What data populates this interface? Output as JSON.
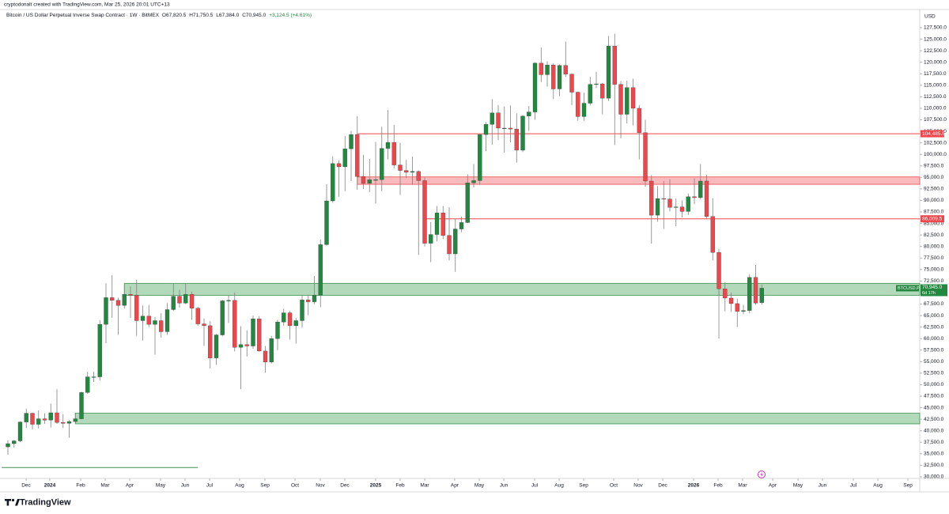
{
  "header": {
    "credit": "cryptodonalt created with TradingView.com, Mar 25, 2026 20:01 UTC+13",
    "footer_logo": "TradingView"
  },
  "chart_data": {
    "type": "candlestick",
    "title": "Bitcoin / US Dollar Perpetual Inverse Swap Contract · 1W · BitMEX",
    "legend_text": [
      "O67,820.5",
      "H71,750.5",
      "L67,384.0",
      "C70,945.0",
      "+3,124.5 (+4.61%)"
    ],
    "y_axis_unit": "USD",
    "up_color": "#22883f",
    "down_color": "#f0464b",
    "wick_color": "#808080",
    "open": [
      36500,
      37200,
      37800,
      41900,
      43800,
      41400,
      42600,
      42300,
      43900,
      41800,
      41600,
      42000,
      42600,
      48300,
      51700,
      51700,
      63100,
      68900,
      68300,
      67200,
      69600,
      69400,
      63900,
      64900,
      63100,
      63900,
      61500,
      66300,
      69200,
      67700,
      69600,
      66600,
      63200,
      62800,
      55800,
      60800,
      68200,
      68300,
      58100,
      58700,
      58400,
      64300,
      57300,
      54900,
      60000,
      63600,
      65600,
      62800,
      63900,
      68400,
      68000,
      69400,
      80400,
      89900,
      98000,
      97300,
      101200,
      104300,
      95200,
      93700,
      94500,
      94500,
      101300,
      102600,
      97700,
      96500,
      96100,
      96300,
      94300,
      80700,
      82600,
      87300,
      82400,
      78400,
      83800,
      85200,
      93800,
      94300,
      104300,
      106500,
      109000,
      105700,
      105700,
      105500,
      100900,
      108300,
      109200,
      119800,
      117300,
      119400,
      114200,
      119300,
      117400,
      113500,
      108200,
      111100,
      115200,
      115300,
      112200,
      123500,
      115200,
      108700,
      114500,
      110000,
      104700,
      94200,
      86800,
      90400,
      90300,
      88500,
      88600,
      87600,
      90800,
      90600,
      94200,
      86500,
      78700,
      70800,
      68800,
      67600,
      65900,
      66100,
      73300,
      67820.5
    ],
    "high": [
      37900,
      38000,
      42000,
      44800,
      43900,
      44400,
      43800,
      45900,
      49000,
      43600,
      42300,
      43900,
      48500,
      52800,
      52800,
      64000,
      72000,
      73800,
      68900,
      71700,
      71300,
      72800,
      67200,
      67300,
      64700,
      65500,
      67700,
      71900,
      70600,
      71900,
      70200,
      66900,
      64400,
      63800,
      61000,
      68400,
      69300,
      70000,
      62700,
      61800,
      65000,
      64900,
      58400,
      60600,
      64100,
      66500,
      66000,
      64500,
      69500,
      69500,
      73600,
      81500,
      93500,
      99600,
      98700,
      104000,
      105100,
      108300,
      99900,
      99000,
      102700,
      106000,
      109600,
      106400,
      102500,
      98800,
      99500,
      96500,
      95000,
      85300,
      88800,
      88800,
      88500,
      86000,
      86500,
      95700,
      97900,
      104500,
      107000,
      112000,
      110700,
      110400,
      110600,
      108900,
      108500,
      110500,
      120000,
      123200,
      120200,
      119800,
      119500,
      124500,
      117600,
      113600,
      113400,
      116800,
      117900,
      115500,
      125700,
      126200,
      115900,
      116000,
      116400,
      110700,
      107500,
      95500,
      93100,
      94200,
      94600,
      90400,
      90000,
      91500,
      94800,
      97900,
      95500,
      90500,
      79500,
      72200,
      70000,
      68700,
      67300,
      74000,
      76000,
      71750.5
    ],
    "low": [
      34800,
      36300,
      37500,
      40600,
      40300,
      40500,
      41500,
      40700,
      41500,
      40600,
      38500,
      41800,
      42500,
      48000,
      50600,
      50900,
      59000,
      64500,
      60800,
      66500,
      64500,
      60600,
      59600,
      62500,
      56500,
      60200,
      60800,
      66000,
      66700,
      67500,
      64100,
      62800,
      58400,
      53500,
      54300,
      60600,
      63400,
      57200,
      49000,
      56100,
      57800,
      57200,
      52600,
      54600,
      57500,
      62800,
      59800,
      58900,
      62400,
      65100,
      67500,
      66800,
      80200,
      89500,
      90800,
      92000,
      94200,
      92300,
      92500,
      91800,
      89300,
      92000,
      98900,
      97000,
      91200,
      94900,
      93400,
      78200,
      80000,
      76600,
      81100,
      81600,
      77000,
      74500,
      83100,
      85100,
      92800,
      93400,
      100700,
      102100,
      103100,
      100400,
      102600,
      98200,
      100500,
      105100,
      107500,
      115700,
      114700,
      112000,
      112600,
      116800,
      110700,
      107300,
      107300,
      110600,
      114400,
      108700,
      111600,
      102000,
      103500,
      106700,
      106300,
      98900,
      93000,
      80600,
      85400,
      83800,
      87600,
      84400,
      86300,
      86800,
      89200,
      90200,
      86000,
      77000,
      60000,
      65900,
      65800,
      62500,
      65300,
      65500,
      67300,
      67384
    ],
    "close": [
      37200,
      37800,
      41900,
      43800,
      41400,
      42600,
      42300,
      43900,
      41800,
      41600,
      42000,
      42600,
      48300,
      51700,
      51700,
      63100,
      68900,
      68300,
      67200,
      69600,
      69400,
      63900,
      64900,
      63100,
      63900,
      61500,
      66300,
      69200,
      67700,
      69600,
      66600,
      63200,
      62800,
      55800,
      60800,
      68200,
      68300,
      58100,
      58700,
      58400,
      64300,
      57300,
      54900,
      60000,
      63600,
      65600,
      62800,
      63900,
      68400,
      68000,
      69400,
      80400,
      89900,
      98000,
      97300,
      101200,
      104300,
      95200,
      93700,
      94500,
      94500,
      101300,
      102600,
      97700,
      96500,
      96100,
      96300,
      94300,
      80700,
      82600,
      87300,
      82400,
      78400,
      83800,
      85200,
      93800,
      94300,
      104300,
      106500,
      109000,
      105700,
      105700,
      105500,
      100900,
      108300,
      109200,
      119800,
      117300,
      119400,
      114200,
      119300,
      117400,
      113500,
      108200,
      111100,
      115200,
      115300,
      112200,
      123500,
      115200,
      108700,
      114500,
      110000,
      104700,
      94200,
      86800,
      90400,
      90300,
      88500,
      88600,
      87600,
      90800,
      90600,
      94200,
      86500,
      78700,
      70800,
      68800,
      67600,
      65900,
      66100,
      73300,
      67700,
      70945
    ],
    "xlim": [
      -1.29,
      148.77
    ],
    "xticks": [
      {
        "value": 2.97,
        "label": "Dec"
      },
      {
        "value": 6.84,
        "label": "2024"
      },
      {
        "value": 11.87,
        "label": "Feb"
      },
      {
        "value": 15.87,
        "label": "Mar"
      },
      {
        "value": 19.87,
        "label": "Apr"
      },
      {
        "value": 24.9,
        "label": "May"
      },
      {
        "value": 28.9,
        "label": "Jun"
      },
      {
        "value": 32.9,
        "label": "Jul"
      },
      {
        "value": 37.81,
        "label": "Aug"
      },
      {
        "value": 41.94,
        "label": "Sep"
      },
      {
        "value": 46.84,
        "label": "Oct"
      },
      {
        "value": 50.97,
        "label": "Nov"
      },
      {
        "value": 54.97,
        "label": "Dec"
      },
      {
        "value": 60.0,
        "label": "2025"
      },
      {
        "value": 64.0,
        "label": "Feb"
      },
      {
        "value": 68.0,
        "label": "Mar"
      },
      {
        "value": 72.9,
        "label": "Apr"
      },
      {
        "value": 76.9,
        "label": "May"
      },
      {
        "value": 80.9,
        "label": "Jun"
      },
      {
        "value": 85.94,
        "label": "Jul"
      },
      {
        "value": 89.94,
        "label": "Aug"
      },
      {
        "value": 93.94,
        "label": "Sep"
      },
      {
        "value": 98.84,
        "label": "Oct"
      },
      {
        "value": 102.84,
        "label": "Nov"
      },
      {
        "value": 106.84,
        "label": "Dec"
      },
      {
        "value": 111.87,
        "label": "2026"
      },
      {
        "value": 115.87,
        "label": "Feb"
      },
      {
        "value": 119.87,
        "label": "Mar"
      },
      {
        "value": 124.77,
        "label": "Apr"
      },
      {
        "value": 128.9,
        "label": "May"
      },
      {
        "value": 132.9,
        "label": "Jun"
      },
      {
        "value": 137.94,
        "label": "Jul"
      },
      {
        "value": 141.94,
        "label": "Aug"
      },
      {
        "value": 146.84,
        "label": "Sep"
      }
    ],
    "ylim": [
      29650,
      131450
    ],
    "yticks": [
      {
        "value": 30000,
        "label": "30,000.0"
      },
      {
        "value": 32500,
        "label": "32,500.0"
      },
      {
        "value": 35000,
        "label": "35,000.0"
      },
      {
        "value": 37500,
        "label": "37,500.0"
      },
      {
        "value": 40000,
        "label": "40,000.0"
      },
      {
        "value": 42500,
        "label": "42,500.0"
      },
      {
        "value": 45000,
        "label": "45,000.0"
      },
      {
        "value": 47500,
        "label": "47,500.0"
      },
      {
        "value": 50000,
        "label": "50,000.0"
      },
      {
        "value": 52500,
        "label": "52,500.0"
      },
      {
        "value": 55000,
        "label": "55,000.0"
      },
      {
        "value": 57500,
        "label": "57,500.0"
      },
      {
        "value": 60000,
        "label": "60,000.0"
      },
      {
        "value": 62500,
        "label": "62,500.0"
      },
      {
        "value": 65000,
        "label": "65,000.0"
      },
      {
        "value": 67500,
        "label": "67,500.0"
      },
      {
        "value": 70000,
        "label": "70,000.0"
      },
      {
        "value": 72500,
        "label": "72,500.0"
      },
      {
        "value": 75000,
        "label": "75,000.0"
      },
      {
        "value": 77500,
        "label": "77,500.0"
      },
      {
        "value": 80000,
        "label": "80,000.0"
      },
      {
        "value": 82500,
        "label": "82,500.0"
      },
      {
        "value": 85000,
        "label": "85,000.0"
      },
      {
        "value": 87500,
        "label": "87,500.0"
      },
      {
        "value": 90000,
        "label": "90,000.0"
      },
      {
        "value": 92500,
        "label": "92,500.0"
      },
      {
        "value": 95000,
        "label": "95,000.0"
      },
      {
        "value": 97500,
        "label": "97,500.0"
      },
      {
        "value": 100000,
        "label": "100,000.0"
      },
      {
        "value": 102500,
        "label": "102,500.0"
      },
      {
        "value": 105000,
        "label": "105,000.0"
      },
      {
        "value": 107500,
        "label": "107,500.0"
      },
      {
        "value": 110000,
        "label": "110,000.0"
      },
      {
        "value": 112500,
        "label": "112,500.0"
      },
      {
        "value": 115000,
        "label": "115,000.0"
      },
      {
        "value": 117500,
        "label": "117,500.0"
      },
      {
        "value": 120000,
        "label": "120,000.0"
      },
      {
        "value": 122500,
        "label": "122,500.0"
      },
      {
        "value": 125000,
        "label": "125,000.0"
      },
      {
        "value": 127500,
        "label": "127,500.0"
      }
    ],
    "grid": false,
    "zones": [
      {
        "low": 93500,
        "high": 95100,
        "from": 57,
        "color": "#f7b3b5",
        "border": "#f0464b"
      },
      {
        "low": 69400,
        "high": 72000,
        "from": 19,
        "color": "#a8d5b2",
        "border": "#3d8f52"
      },
      {
        "low": 41500,
        "high": 43800,
        "from": 11,
        "color": "#a8d5b2",
        "border": "#3d8f52"
      }
    ],
    "levels": [
      {
        "value": 104485.5,
        "label": "104,485.5",
        "from": 57,
        "color": "#f0464b"
      },
      {
        "value": 86009.5,
        "label": "86,009.5",
        "from": 68,
        "color": "#f0464b"
      }
    ],
    "segments": [
      {
        "value": 32000,
        "from": -1,
        "to": 31,
        "color": "#3d8f52"
      }
    ],
    "last_price": {
      "value": 70945,
      "label": "70,945.0",
      "symbol": "BTCUSD.P",
      "countdown": "6d 17h",
      "color": "#22883f"
    }
  }
}
